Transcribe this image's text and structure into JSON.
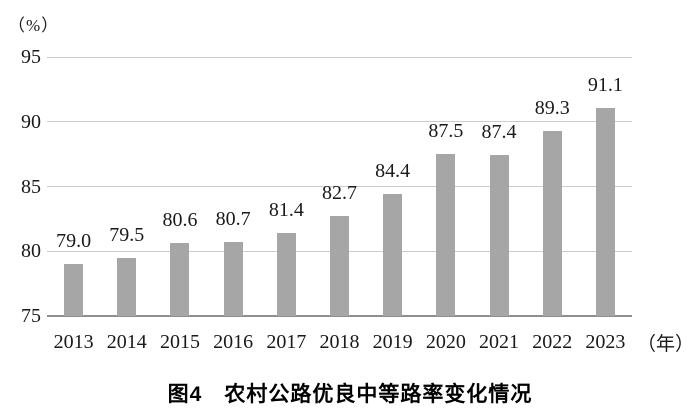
{
  "chart_data": {
    "type": "bar",
    "title": "图4　农村公路优良中等路率变化情况",
    "ylabel_unit": "（%）",
    "xlabel_unit": "（年）",
    "categories": [
      "2013",
      "2014",
      "2015",
      "2016",
      "2017",
      "2018",
      "2019",
      "2020",
      "2021",
      "2022",
      "2023"
    ],
    "values": [
      79.0,
      79.5,
      80.6,
      80.7,
      81.4,
      82.7,
      84.4,
      87.5,
      87.4,
      89.3,
      91.1
    ],
    "value_labels": [
      "79.0",
      "79.5",
      "80.6",
      "80.7",
      "81.4",
      "82.7",
      "84.4",
      "87.5",
      "87.4",
      "89.3",
      "91.1"
    ],
    "y_ticks": [
      75,
      80,
      85,
      90,
      95
    ],
    "ylim": [
      75,
      95
    ],
    "grid": true,
    "legend": "none",
    "colors": {
      "bar": "#a6a6a6",
      "gridline": "#cccccc",
      "axis_line": "#8f8f8f",
      "text": "#1a1a1a",
      "background": "#ffffff"
    }
  }
}
